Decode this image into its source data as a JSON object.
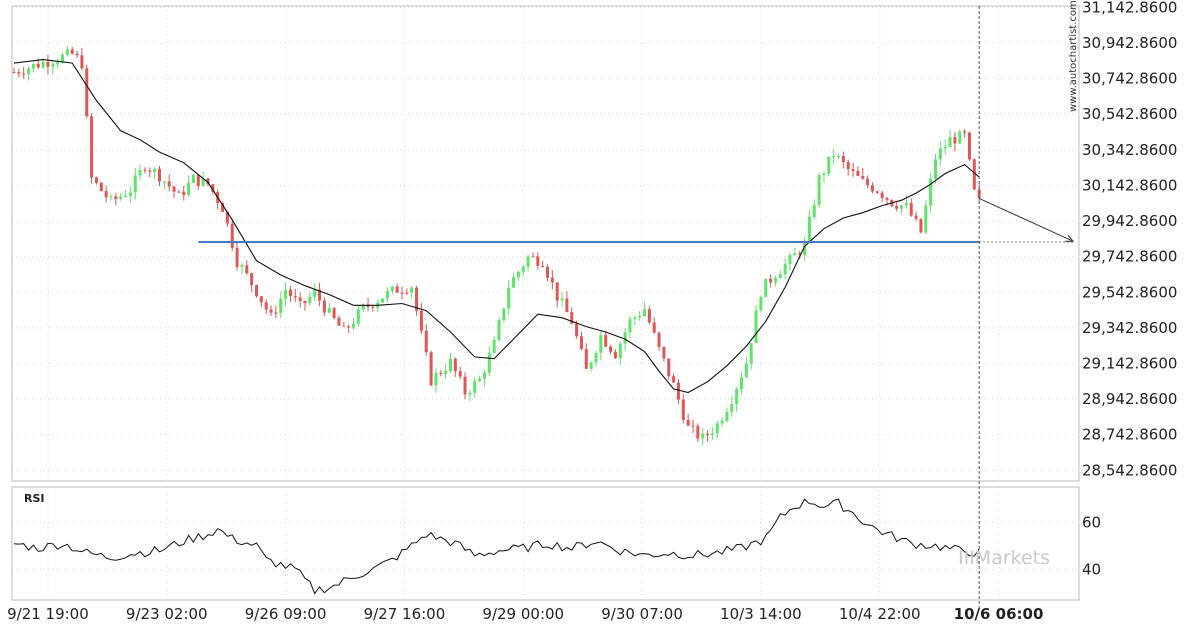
{
  "watermark": "www.autochartist.com",
  "brand": "IIIMarkets",
  "chart_data": [
    {
      "type": "candlestick",
      "y_ticks": [
        "31,142.8600",
        "30,942.8600",
        "30,742.8600",
        "30,542.8600",
        "30,342.8600",
        "30,142.8600",
        "29,942.8600",
        "29,742.8600",
        "29,542.8600",
        "29,342.8600",
        "29,142.8600",
        "28,942.8600",
        "28,742.8600",
        "28,542.8600"
      ],
      "y_tick_values": [
        31142.86,
        30942.86,
        30742.86,
        30542.86,
        30342.86,
        30142.86,
        29942.86,
        29742.86,
        29542.86,
        29342.86,
        29142.86,
        28942.86,
        28742.86,
        28542.86
      ],
      "ylim": [
        28482.86,
        31150.86
      ],
      "x_ticks": [
        "9/21 19:00",
        "9/23 02:00",
        "9/26 09:00",
        "9/27 16:00",
        "9/29 00:00",
        "9/30 07:00",
        "10/3 14:00",
        "10/4 22:00",
        "10/6 06:00"
      ],
      "x_tick_bold": [
        false,
        false,
        false,
        false,
        false,
        false,
        false,
        false,
        true
      ],
      "candle_count": 220,
      "price_path": [
        [
          0,
          30780
        ],
        [
          8,
          30850
        ],
        [
          12,
          30880
        ],
        [
          14,
          30830
        ],
        [
          16,
          30180
        ],
        [
          20,
          30050
        ],
        [
          24,
          30120
        ],
        [
          27,
          30260
        ],
        [
          30,
          30200
        ],
        [
          34,
          30080
        ],
        [
          37,
          30180
        ],
        [
          40,
          30150
        ],
        [
          43,
          30020
        ],
        [
          46,
          29720
        ],
        [
          50,
          29550
        ],
        [
          53,
          29400
        ],
        [
          56,
          29560
        ],
        [
          59,
          29460
        ],
        [
          62,
          29540
        ],
        [
          65,
          29420
        ],
        [
          68,
          29320
        ],
        [
          72,
          29450
        ],
        [
          76,
          29520
        ],
        [
          79,
          29560
        ],
        [
          82,
          29580
        ],
        [
          84,
          29300
        ],
        [
          86,
          29050
        ],
        [
          90,
          29150
        ],
        [
          93,
          28980
        ],
        [
          96,
          29050
        ],
        [
          99,
          29250
        ],
        [
          102,
          29580
        ],
        [
          106,
          29740
        ],
        [
          109,
          29720
        ],
        [
          112,
          29520
        ],
        [
          115,
          29380
        ],
        [
          118,
          29100
        ],
        [
          121,
          29300
        ],
        [
          124,
          29200
        ],
        [
          127,
          29380
        ],
        [
          130,
          29450
        ],
        [
          133,
          29220
        ],
        [
          136,
          29020
        ],
        [
          139,
          28780
        ],
        [
          142,
          28720
        ],
        [
          145,
          28800
        ],
        [
          148,
          28950
        ],
        [
          151,
          29150
        ],
        [
          154,
          29550
        ],
        [
          157,
          29650
        ],
        [
          160,
          29720
        ],
        [
          163,
          29810
        ],
        [
          166,
          30180
        ],
        [
          169,
          30320
        ],
        [
          172,
          30230
        ],
        [
          175,
          30160
        ],
        [
          178,
          30120
        ],
        [
          181,
          30050
        ],
        [
          184,
          30020
        ],
        [
          187,
          29880
        ],
        [
          190,
          30300
        ],
        [
          193,
          30400
        ],
        [
          196,
          30420
        ],
        [
          198,
          30100
        ],
        [
          199,
          30050
        ]
      ],
      "ma_path": [
        [
          0,
          30830
        ],
        [
          6,
          30850
        ],
        [
          12,
          30830
        ],
        [
          17,
          30620
        ],
        [
          22,
          30450
        ],
        [
          26,
          30400
        ],
        [
          30,
          30330
        ],
        [
          35,
          30270
        ],
        [
          40,
          30160
        ],
        [
          45,
          29950
        ],
        [
          50,
          29720
        ],
        [
          55,
          29640
        ],
        [
          60,
          29580
        ],
        [
          65,
          29530
        ],
        [
          70,
          29470
        ],
        [
          75,
          29470
        ],
        [
          80,
          29480
        ],
        [
          85,
          29440
        ],
        [
          90,
          29320
        ],
        [
          95,
          29180
        ],
        [
          99,
          29170
        ],
        [
          103,
          29280
        ],
        [
          108,
          29420
        ],
        [
          113,
          29400
        ],
        [
          118,
          29350
        ],
        [
          122,
          29320
        ],
        [
          126,
          29280
        ],
        [
          130,
          29210
        ],
        [
          133,
          29100
        ],
        [
          136,
          29000
        ],
        [
          139,
          28980
        ],
        [
          143,
          29040
        ],
        [
          147,
          29130
        ],
        [
          151,
          29240
        ],
        [
          155,
          29380
        ],
        [
          159,
          29570
        ],
        [
          163,
          29800
        ],
        [
          167,
          29900
        ],
        [
          171,
          29960
        ],
        [
          175,
          29990
        ],
        [
          179,
          30030
        ],
        [
          183,
          30060
        ],
        [
          186,
          30100
        ],
        [
          189,
          30150
        ],
        [
          192,
          30210
        ],
        [
          196,
          30260
        ],
        [
          199,
          30190
        ]
      ],
      "support_level": 29825,
      "projection": {
        "from_index": 199,
        "from_value": 30070,
        "to_index": 219,
        "to_value": 29830
      },
      "colors": {
        "up": "#5ee36b",
        "down": "#de5656",
        "ma": "#111111",
        "support": "#4a78c2",
        "projection": "#333333",
        "grid": "#d8d8d8",
        "cursor": "#555555"
      }
    },
    {
      "type": "line",
      "label": "RSI",
      "y_ticks": [
        "60",
        "40"
      ],
      "y_tick_values": [
        60,
        40
      ],
      "ylim": [
        27,
        75
      ],
      "values": [
        [
          0,
          51
        ],
        [
          5,
          49
        ],
        [
          10,
          51
        ],
        [
          15,
          47
        ],
        [
          20,
          45
        ],
        [
          25,
          47
        ],
        [
          30,
          48
        ],
        [
          35,
          52
        ],
        [
          40,
          55
        ],
        [
          42,
          57
        ],
        [
          45,
          53
        ],
        [
          50,
          50
        ],
        [
          52,
          44
        ],
        [
          55,
          42
        ],
        [
          58,
          40
        ],
        [
          62,
          31
        ],
        [
          66,
          33
        ],
        [
          70,
          37
        ],
        [
          74,
          40
        ],
        [
          78,
          44
        ],
        [
          82,
          50
        ],
        [
          85,
          55
        ],
        [
          88,
          53
        ],
        [
          91,
          51
        ],
        [
          95,
          46
        ],
        [
          100,
          48
        ],
        [
          105,
          49
        ],
        [
          110,
          51
        ],
        [
          115,
          49
        ],
        [
          120,
          52
        ],
        [
          125,
          48
        ],
        [
          130,
          46
        ],
        [
          135,
          47
        ],
        [
          140,
          46
        ],
        [
          145,
          47
        ],
        [
          150,
          49
        ],
        [
          155,
          53
        ],
        [
          158,
          62
        ],
        [
          161,
          67
        ],
        [
          164,
          69
        ],
        [
          167,
          67
        ],
        [
          170,
          68
        ],
        [
          173,
          64
        ],
        [
          176,
          59
        ],
        [
          180,
          55
        ],
        [
          185,
          51
        ],
        [
          190,
          50
        ],
        [
          195,
          48
        ],
        [
          199,
          47
        ]
      ],
      "colors": {
        "line": "#111111"
      }
    }
  ]
}
